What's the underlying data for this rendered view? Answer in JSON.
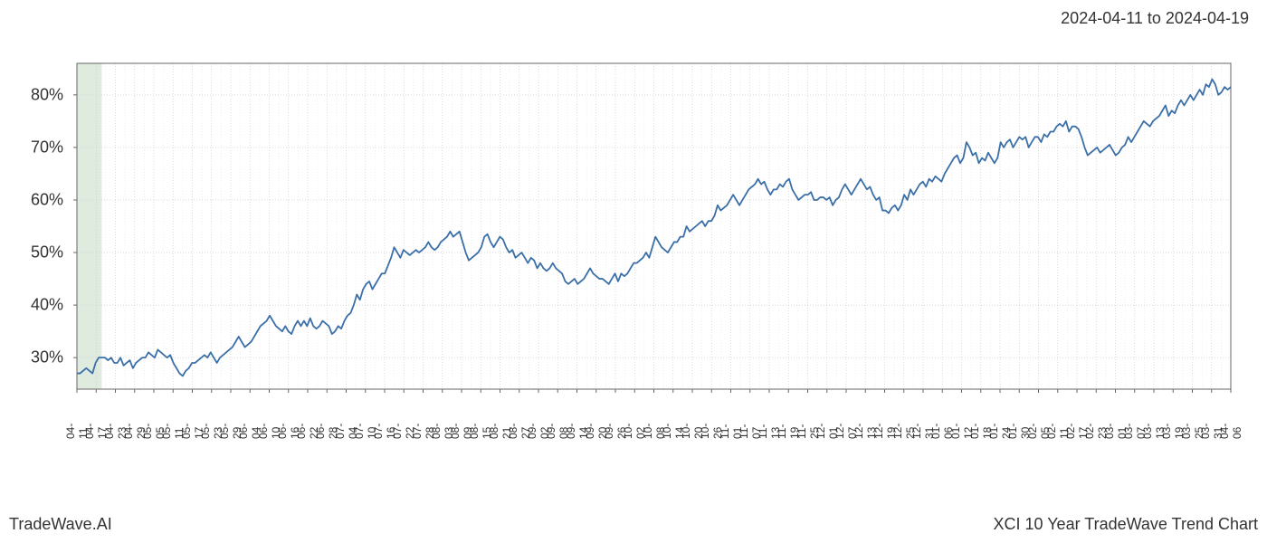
{
  "date_range": "2024-04-11 to 2024-04-19",
  "footer_left": "TradeWave.AI",
  "footer_right": "XCI 10 Year TradeWave Trend Chart",
  "chart": {
    "type": "line",
    "line_color": "#3b6fa8",
    "line_width": 1.8,
    "background_color": "#ffffff",
    "grid_color": "#cccccc",
    "grid_minor_color": "#e5e5e5",
    "highlight_band_color": "#e0ebe0",
    "highlight_band": {
      "start_idx": 0,
      "end_idx": 8
    },
    "axis_color": "#666666",
    "label_color": "#333333",
    "y_label_fontsize": 18,
    "x_label_fontsize": 12,
    "ylim": [
      24,
      86
    ],
    "y_ticks": [
      30,
      40,
      50,
      60,
      70,
      80
    ],
    "y_tick_labels": [
      "30%",
      "40%",
      "50%",
      "60%",
      "70%",
      "80%"
    ],
    "x_tick_labels": [
      "04-11",
      "04-17",
      "04-23",
      "04-29",
      "05-05",
      "05-11",
      "05-17",
      "05-23",
      "05-29",
      "06-04",
      "06-10",
      "06-16",
      "06-22",
      "06-28",
      "07-04",
      "07-10",
      "07-16",
      "07-22",
      "07-28",
      "08-03",
      "08-09",
      "08-15",
      "08-21",
      "08-27",
      "09-02",
      "09-08",
      "09-14",
      "09-20",
      "09-26",
      "10-02",
      "10-08",
      "10-14",
      "10-20",
      "10-26",
      "11-01",
      "11-07",
      "11-13",
      "11-19",
      "11-25",
      "12-01",
      "12-07",
      "12-13",
      "12-19",
      "12-25",
      "12-31",
      "01-06",
      "01-12",
      "01-18",
      "01-24",
      "01-30",
      "02-05",
      "02-11",
      "02-17",
      "02-23",
      "03-01",
      "03-07",
      "03-13",
      "03-19",
      "03-25",
      "03-31",
      "04-06"
    ],
    "x_tick_count": 61,
    "data_points_per_tick": 6,
    "values": [
      27,
      27,
      27.5,
      28,
      27.5,
      27,
      29,
      30,
      30,
      30,
      29.5,
      30,
      29,
      29,
      30,
      28.5,
      29,
      29.5,
      28,
      29,
      29.5,
      30,
      30,
      31,
      30.5,
      30,
      31.5,
      31,
      30.5,
      30,
      30.5,
      29,
      28,
      27,
      26.5,
      27.5,
      28,
      29,
      29,
      29.5,
      30,
      30.5,
      30,
      31,
      30,
      29,
      30,
      30.5,
      31,
      31.5,
      32,
      33,
      34,
      33,
      32,
      32.5,
      33,
      34,
      35,
      36,
      36.5,
      37,
      38,
      37,
      36,
      35.5,
      35,
      36,
      35,
      34.5,
      36,
      37,
      36,
      37,
      36,
      37.5,
      36,
      35.5,
      36,
      37,
      36.5,
      36,
      34.5,
      35,
      36,
      35.5,
      37,
      38,
      38.5,
      40,
      42,
      41,
      43,
      44,
      44.5,
      43,
      44,
      45,
      46,
      46,
      47.5,
      49,
      51,
      50,
      49,
      50.5,
      50,
      49.5,
      50,
      50.5,
      50,
      50.5,
      51,
      52,
      51,
      50.5,
      51,
      52,
      52.5,
      53,
      54,
      53,
      53.5,
      54,
      52,
      50,
      48.5,
      49,
      49.5,
      50,
      51,
      53,
      53.5,
      52,
      51,
      52,
      53,
      52.5,
      51,
      50,
      50.5,
      49,
      49.5,
      50,
      49,
      48,
      49,
      48.5,
      47,
      48,
      47,
      46.5,
      47,
      48,
      47,
      46.5,
      46,
      44.5,
      44,
      44.5,
      45,
      44,
      44.5,
      45,
      46,
      47,
      46,
      45.5,
      45,
      45,
      44.5,
      44,
      45,
      46,
      44.5,
      46,
      45.5,
      46,
      47,
      48,
      48,
      48.5,
      49,
      50,
      49,
      51,
      53,
      52,
      51,
      50.5,
      50,
      51,
      52,
      52,
      53,
      53,
      55,
      54,
      54.5,
      55,
      55.5,
      56,
      55,
      56,
      56,
      57,
      59,
      58,
      58.5,
      59,
      60,
      61,
      60,
      59,
      60,
      61,
      62,
      62.5,
      63,
      64,
      63,
      63.5,
      62,
      61,
      62,
      62,
      63,
      62.5,
      63.5,
      64,
      62,
      61,
      60,
      60.5,
      61,
      61,
      61.5,
      60,
      60,
      60.5,
      60.5,
      60,
      60.5,
      59,
      60,
      60.5,
      62,
      63,
      62,
      61,
      62,
      63,
      64,
      63,
      62,
      62.5,
      61,
      60,
      60.5,
      58,
      58,
      57.5,
      58.5,
      59,
      58,
      59,
      61,
      60,
      62,
      61,
      62,
      63,
      63.5,
      62.5,
      64,
      63.5,
      64.5,
      64,
      63.5,
      65,
      66,
      67,
      68,
      68.5,
      67,
      68,
      71,
      70,
      68.5,
      69,
      67,
      68,
      67.5,
      69,
      68,
      67,
      68,
      71,
      70,
      71,
      71.5,
      70,
      71,
      72,
      71.5,
      72,
      70,
      71,
      72,
      72,
      71,
      72.5,
      72,
      73,
      73,
      74,
      74.5,
      74,
      75,
      73,
      74,
      74,
      73.5,
      72,
      70,
      68.5,
      69,
      69.5,
      70,
      69,
      69.5,
      70,
      70.5,
      69.5,
      68.5,
      69,
      70,
      70.5,
      72,
      71,
      72,
      73,
      74,
      75,
      74.5,
      74,
      75,
      75.5,
      76,
      77,
      78,
      76,
      77,
      76.5,
      78,
      79,
      78,
      79,
      80,
      79,
      80,
      81,
      80,
      82,
      81.5,
      83,
      82,
      80,
      80.5,
      81.5,
      81,
      81.5
    ]
  }
}
